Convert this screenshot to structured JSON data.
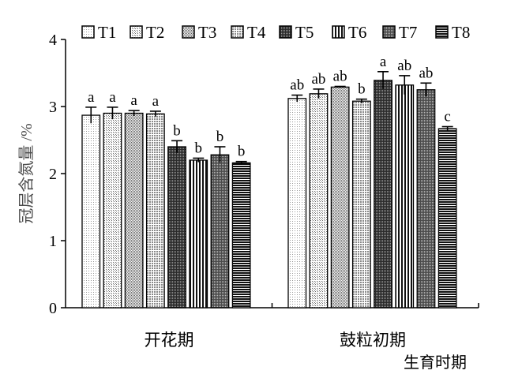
{
  "chart_data": {
    "type": "bar",
    "ylabel": "冠层含氮量 /%",
    "xlabel": "生育时期",
    "ylim": [
      0,
      4
    ],
    "yticks": [
      "0",
      "1",
      "2",
      "3",
      "4"
    ],
    "categories": [
      "开花期",
      "鼓粒初期"
    ],
    "legend_position": "top",
    "grid": false,
    "series": [
      {
        "name": "T1",
        "values": [
          2.87,
          3.12
        ],
        "errors": [
          0.12,
          0.05
        ],
        "labels": [
          "a",
          "ab"
        ],
        "pattern": "fine-dots"
      },
      {
        "name": "T2",
        "values": [
          2.9,
          3.19
        ],
        "errors": [
          0.09,
          0.07
        ],
        "labels": [
          "a",
          "ab"
        ],
        "pattern": "light-dots"
      },
      {
        "name": "T3",
        "values": [
          2.9,
          3.29
        ],
        "errors": [
          0.04,
          0.01
        ],
        "labels": [
          "a",
          "ab"
        ],
        "pattern": "medium-dots"
      },
      {
        "name": "T4",
        "values": [
          2.89,
          3.08
        ],
        "errors": [
          0.04,
          0.03
        ],
        "labels": [
          "a",
          "b"
        ],
        "pattern": "grid-dots"
      },
      {
        "name": "T5",
        "values": [
          2.4,
          3.39
        ],
        "errors": [
          0.09,
          0.13
        ],
        "labels": [
          "b",
          "a"
        ],
        "pattern": "dark-dots"
      },
      {
        "name": "T6",
        "values": [
          2.2,
          3.32
        ],
        "errors": [
          0.03,
          0.14
        ],
        "labels": [
          "b",
          "ab"
        ],
        "pattern": "vertical-lines"
      },
      {
        "name": "T7",
        "values": [
          2.28,
          3.25
        ],
        "errors": [
          0.12,
          0.1
        ],
        "labels": [
          "b",
          "ab"
        ],
        "pattern": "dense-dots"
      },
      {
        "name": "T8",
        "values": [
          2.16,
          2.67
        ],
        "errors": [
          0.02,
          0.03
        ],
        "labels": [
          "b",
          "c"
        ],
        "pattern": "horizontal-lines"
      }
    ]
  }
}
